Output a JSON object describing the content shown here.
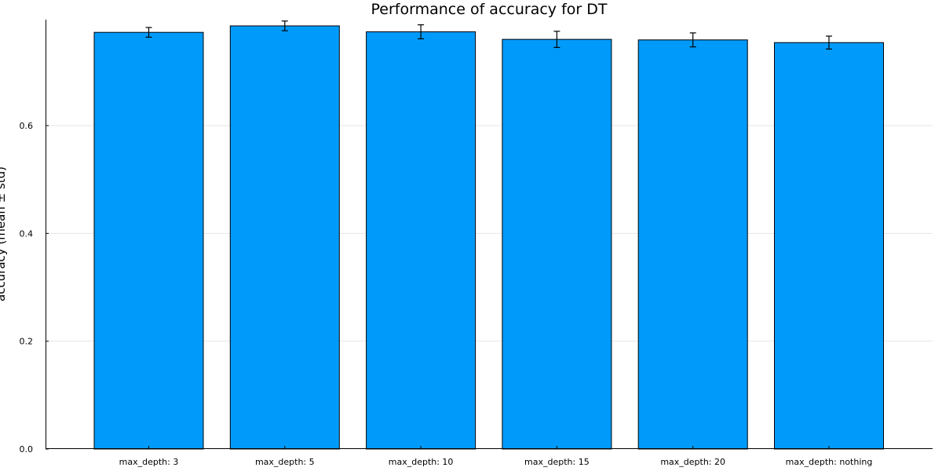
{
  "chart_data": {
    "type": "bar",
    "title": "Performance of accuracy for DT",
    "ylabel": "accuracy (mean ± std)",
    "xlabel": "",
    "categories": [
      "max_depth: 3",
      "max_depth: 5",
      "max_depth: 10",
      "max_depth: 15",
      "max_depth: 20",
      "max_depth: nothing"
    ],
    "series": [
      {
        "values": [
          0.773,
          0.785,
          0.774,
          0.76,
          0.759,
          0.754
        ],
        "errors": [
          0.009,
          0.009,
          0.013,
          0.015,
          0.013,
          0.012
        ],
        "color": "#009AFA"
      }
    ],
    "ylim": [
      0,
      0.8
    ],
    "yticks": [
      "0.0",
      "0.2",
      "0.4",
      "0.6"
    ],
    "ytick_values": [
      0.0,
      0.2,
      0.4,
      0.6
    ],
    "grid": true,
    "legend": "none",
    "colors": {
      "bar_fill": "#009AFA",
      "bar_stroke": "#000000",
      "grid": "#e6e6e6",
      "axis": "#000000"
    }
  }
}
